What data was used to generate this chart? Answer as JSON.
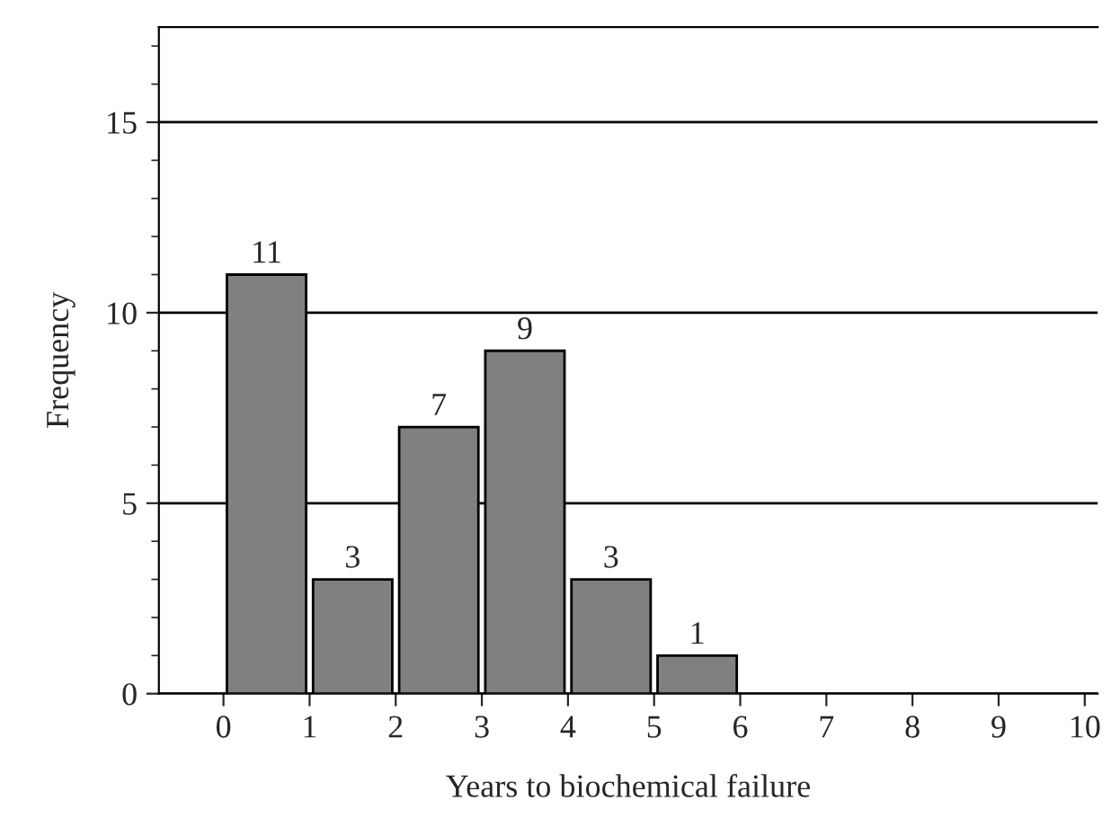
{
  "chart_data": {
    "type": "histogram",
    "xlabel": "Years to biochemical failure",
    "ylabel": "Frequency",
    "bins": [
      0,
      1,
      2,
      3,
      4,
      5,
      6
    ],
    "values": [
      11,
      3,
      7,
      9,
      3,
      1
    ],
    "color": "#808080",
    "xlim": [
      -0.75,
      10.15
    ],
    "xticks": [
      0,
      1,
      2,
      3,
      4,
      5,
      6,
      7,
      8,
      9,
      10
    ],
    "ylim": [
      0,
      17.5
    ],
    "yticks": [
      0,
      5,
      10,
      15
    ],
    "grid": "y",
    "data_labels": true
  }
}
